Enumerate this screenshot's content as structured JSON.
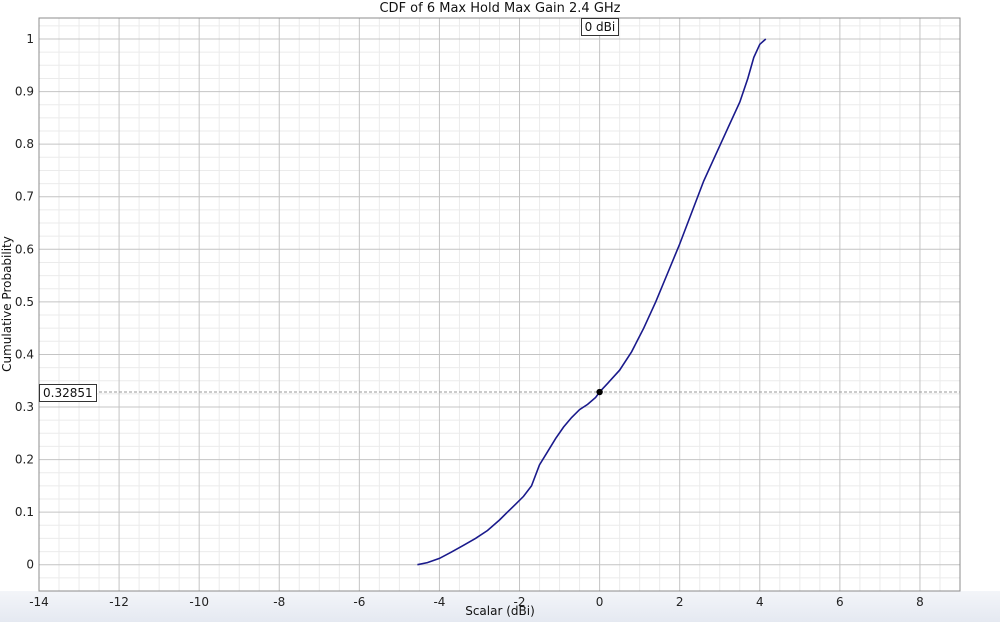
{
  "chart_data": {
    "type": "line",
    "title": "CDF of 6 Max Hold Max Gain 2.4 GHz",
    "xlabel": "Scalar (dBi)",
    "ylabel": "Cumulative Probability",
    "xlim": [
      -14,
      9
    ],
    "ylim": [
      -0.05,
      1.04
    ],
    "xticks": [
      -14,
      -12,
      -10,
      -8,
      -6,
      -4,
      -2,
      0,
      2,
      4,
      6,
      8
    ],
    "yticks": [
      0,
      0.1,
      0.2,
      0.3,
      0.4,
      0.5,
      0.6,
      0.7,
      0.8,
      0.9,
      1
    ],
    "ytick_labels": [
      "0",
      "0.1",
      "0.2",
      "0.3",
      "0.4",
      "0.5",
      "0.6",
      "0.7",
      "0.8",
      "0.9",
      "1"
    ],
    "grid": true,
    "series": [
      {
        "color": "#1a1a8c",
        "x": [
          -4.55,
          -4.3,
          -4.0,
          -3.7,
          -3.4,
          -3.1,
          -2.8,
          -2.5,
          -2.3,
          -2.1,
          -1.9,
          -1.7,
          -1.5,
          -1.3,
          -1.1,
          -0.9,
          -0.7,
          -0.5,
          -0.3,
          -0.1,
          0.0,
          0.2,
          0.5,
          0.8,
          1.1,
          1.4,
          1.7,
          2.0,
          2.3,
          2.6,
          2.9,
          3.2,
          3.5,
          3.7,
          3.85,
          4.0,
          4.15
        ],
        "y": [
          0.0,
          0.004,
          0.012,
          0.024,
          0.037,
          0.05,
          0.065,
          0.085,
          0.1,
          0.115,
          0.13,
          0.15,
          0.19,
          0.215,
          0.24,
          0.262,
          0.28,
          0.295,
          0.305,
          0.318,
          0.3285,
          0.345,
          0.37,
          0.405,
          0.45,
          0.5,
          0.555,
          0.61,
          0.67,
          0.73,
          0.78,
          0.83,
          0.88,
          0.925,
          0.965,
          0.99,
          1.0
        ]
      }
    ],
    "marker": {
      "x": 0,
      "y": 0.32851,
      "x_label": "0 dBi",
      "y_label": "0.32851"
    }
  },
  "colors": {
    "line": "#1a1a8c",
    "grid_major": "#c4c4c4",
    "grid_minor": "#ebebeb",
    "frame": "#8c8c8c"
  }
}
